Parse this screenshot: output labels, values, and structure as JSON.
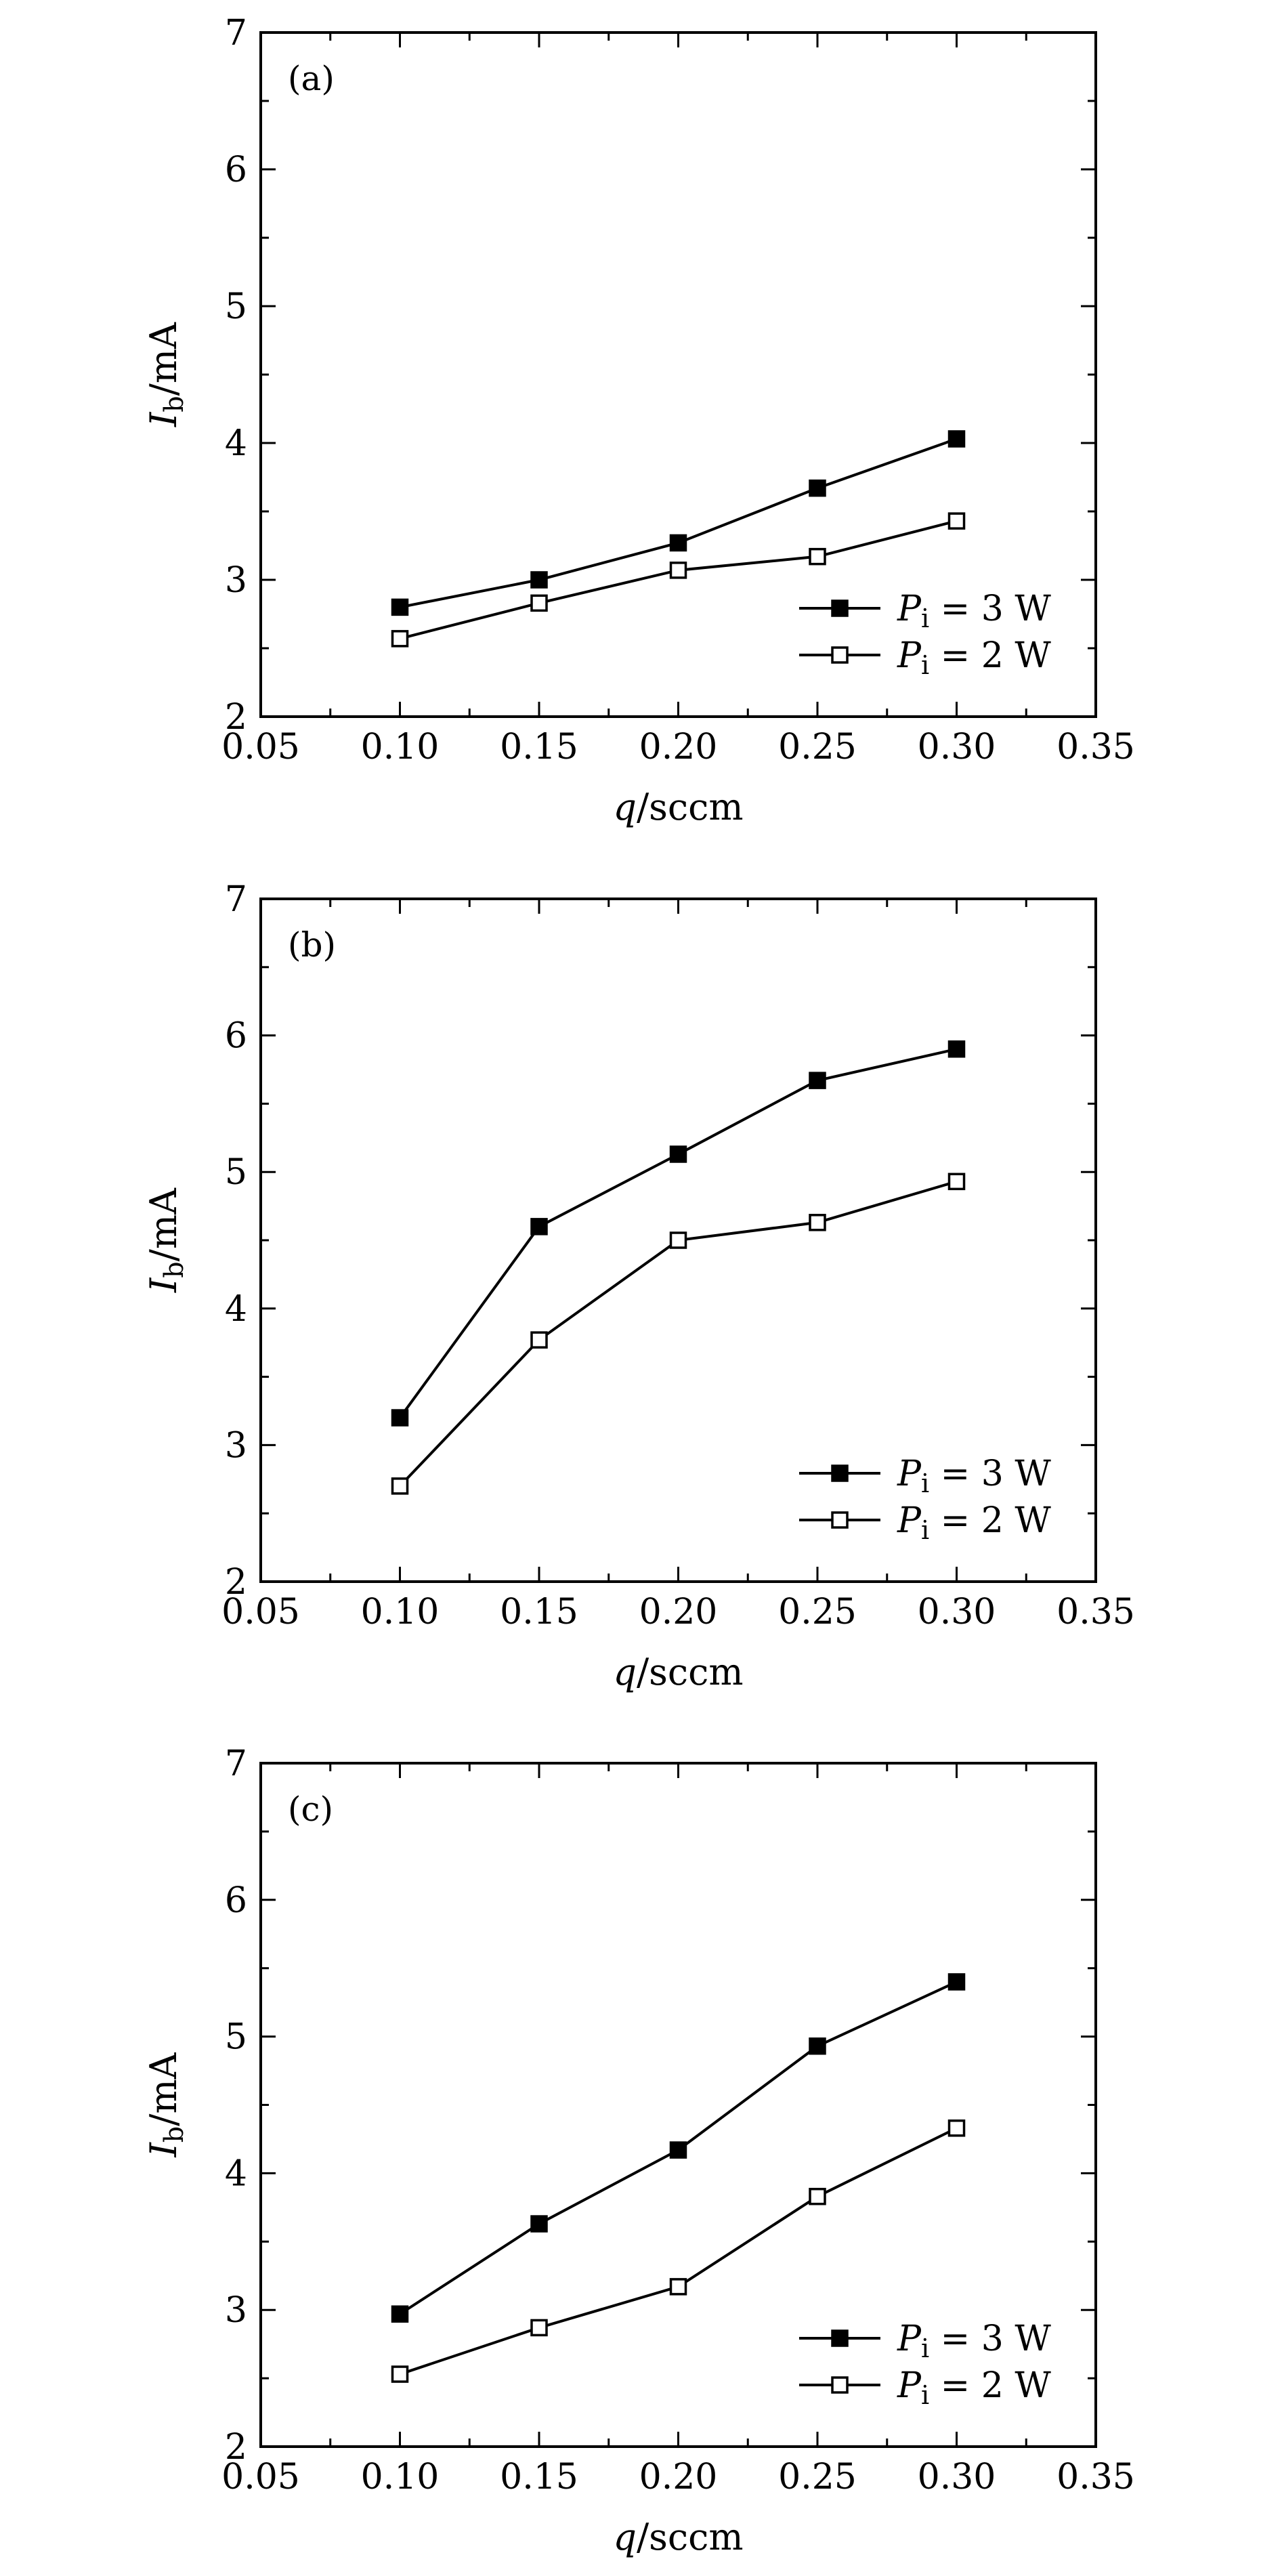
{
  "figure": {
    "chart_data": [
      {
        "type": "line",
        "panel_label": "(a)",
        "xlabel": "q/sccm",
        "ylabel": "Ib/mA",
        "xlim": [
          0.05,
          0.35
        ],
        "ylim": [
          2,
          7
        ],
        "x": [
          0.1,
          0.15,
          0.2,
          0.25,
          0.3
        ],
        "xticks": [
          "0.05",
          "0.10",
          "0.15",
          "0.20",
          "0.25",
          "0.30",
          "0.35"
        ],
        "yticks": [
          "2",
          "3",
          "4",
          "5",
          "6",
          "7"
        ],
        "legend_position": "bottom-right",
        "grid": false,
        "series": [
          {
            "name": "Pi = 3 W",
            "marker": "filled-square",
            "values": [
              2.8,
              3.0,
              3.27,
              3.67,
              4.03
            ]
          },
          {
            "name": "Pi = 2 W",
            "marker": "open-square",
            "values": [
              2.57,
              2.83,
              3.07,
              3.17,
              3.43
            ]
          }
        ]
      },
      {
        "type": "line",
        "panel_label": "(b)",
        "xlabel": "q/sccm",
        "ylabel": "Ib/mA",
        "xlim": [
          0.05,
          0.35
        ],
        "ylim": [
          2,
          7
        ],
        "x": [
          0.1,
          0.15,
          0.2,
          0.25,
          0.3
        ],
        "xticks": [
          "0.05",
          "0.10",
          "0.15",
          "0.20",
          "0.25",
          "0.30",
          "0.35"
        ],
        "yticks": [
          "2",
          "3",
          "4",
          "5",
          "6",
          "7"
        ],
        "legend_position": "bottom-right",
        "grid": false,
        "series": [
          {
            "name": "Pi = 3 W",
            "marker": "filled-square",
            "values": [
              3.2,
              4.6,
              5.13,
              5.67,
              5.9
            ]
          },
          {
            "name": "Pi = 2 W",
            "marker": "open-square",
            "values": [
              2.7,
              3.77,
              4.5,
              4.63,
              4.93
            ]
          }
        ]
      },
      {
        "type": "line",
        "panel_label": "(c)",
        "xlabel": "q/sccm",
        "ylabel": "Ib/mA",
        "xlim": [
          0.05,
          0.35
        ],
        "ylim": [
          2,
          7
        ],
        "x": [
          0.1,
          0.15,
          0.2,
          0.25,
          0.3
        ],
        "xticks": [
          "0.05",
          "0.10",
          "0.15",
          "0.20",
          "0.25",
          "0.30",
          "0.35"
        ],
        "yticks": [
          "2",
          "3",
          "4",
          "5",
          "6",
          "7"
        ],
        "legend_position": "bottom-right",
        "grid": false,
        "series": [
          {
            "name": "Pi = 3 W",
            "marker": "filled-square",
            "values": [
              2.97,
              3.63,
              4.17,
              4.93,
              5.4
            ]
          },
          {
            "name": "Pi = 2 W",
            "marker": "open-square",
            "values": [
              2.53,
              2.87,
              3.17,
              3.83,
              4.33
            ]
          }
        ]
      }
    ],
    "legend_parts": {
      "symbol": "P",
      "subscript": "i",
      "rest_3w": " = 3 W",
      "rest_2w": " = 2 W"
    },
    "label_parts": {
      "x_var": "q",
      "x_unit": "/sccm",
      "y_var": "I",
      "y_sub": "b",
      "y_unit": "/mA"
    }
  }
}
